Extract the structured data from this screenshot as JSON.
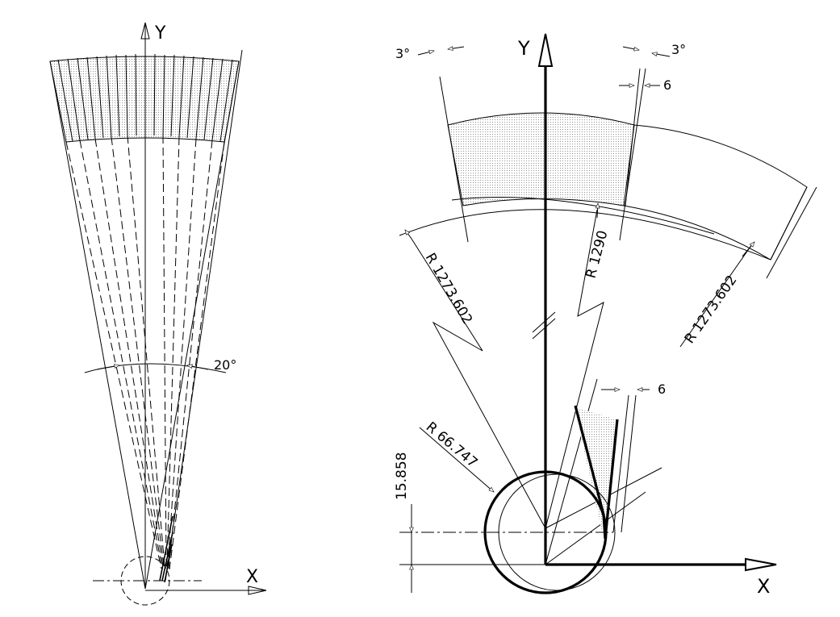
{
  "left_view": {
    "y_axis_label": "Y",
    "x_axis_label": "X",
    "angle_label": "20°"
  },
  "right_view": {
    "y_axis_label": "Y",
    "x_axis_label": "X",
    "top_left_angle": "3°",
    "top_right_angle": "3°",
    "top_gap": "6",
    "lower_gap": "6",
    "radius_left": "R 1273.602",
    "radius_center": "R 1290",
    "radius_right": "R 1273.602",
    "radius_small": "R 66.747",
    "offset_dim": "15.858"
  },
  "colors": {
    "line": "#000000",
    "background": "#ffffff",
    "hatch": "#bdbdbd"
  }
}
